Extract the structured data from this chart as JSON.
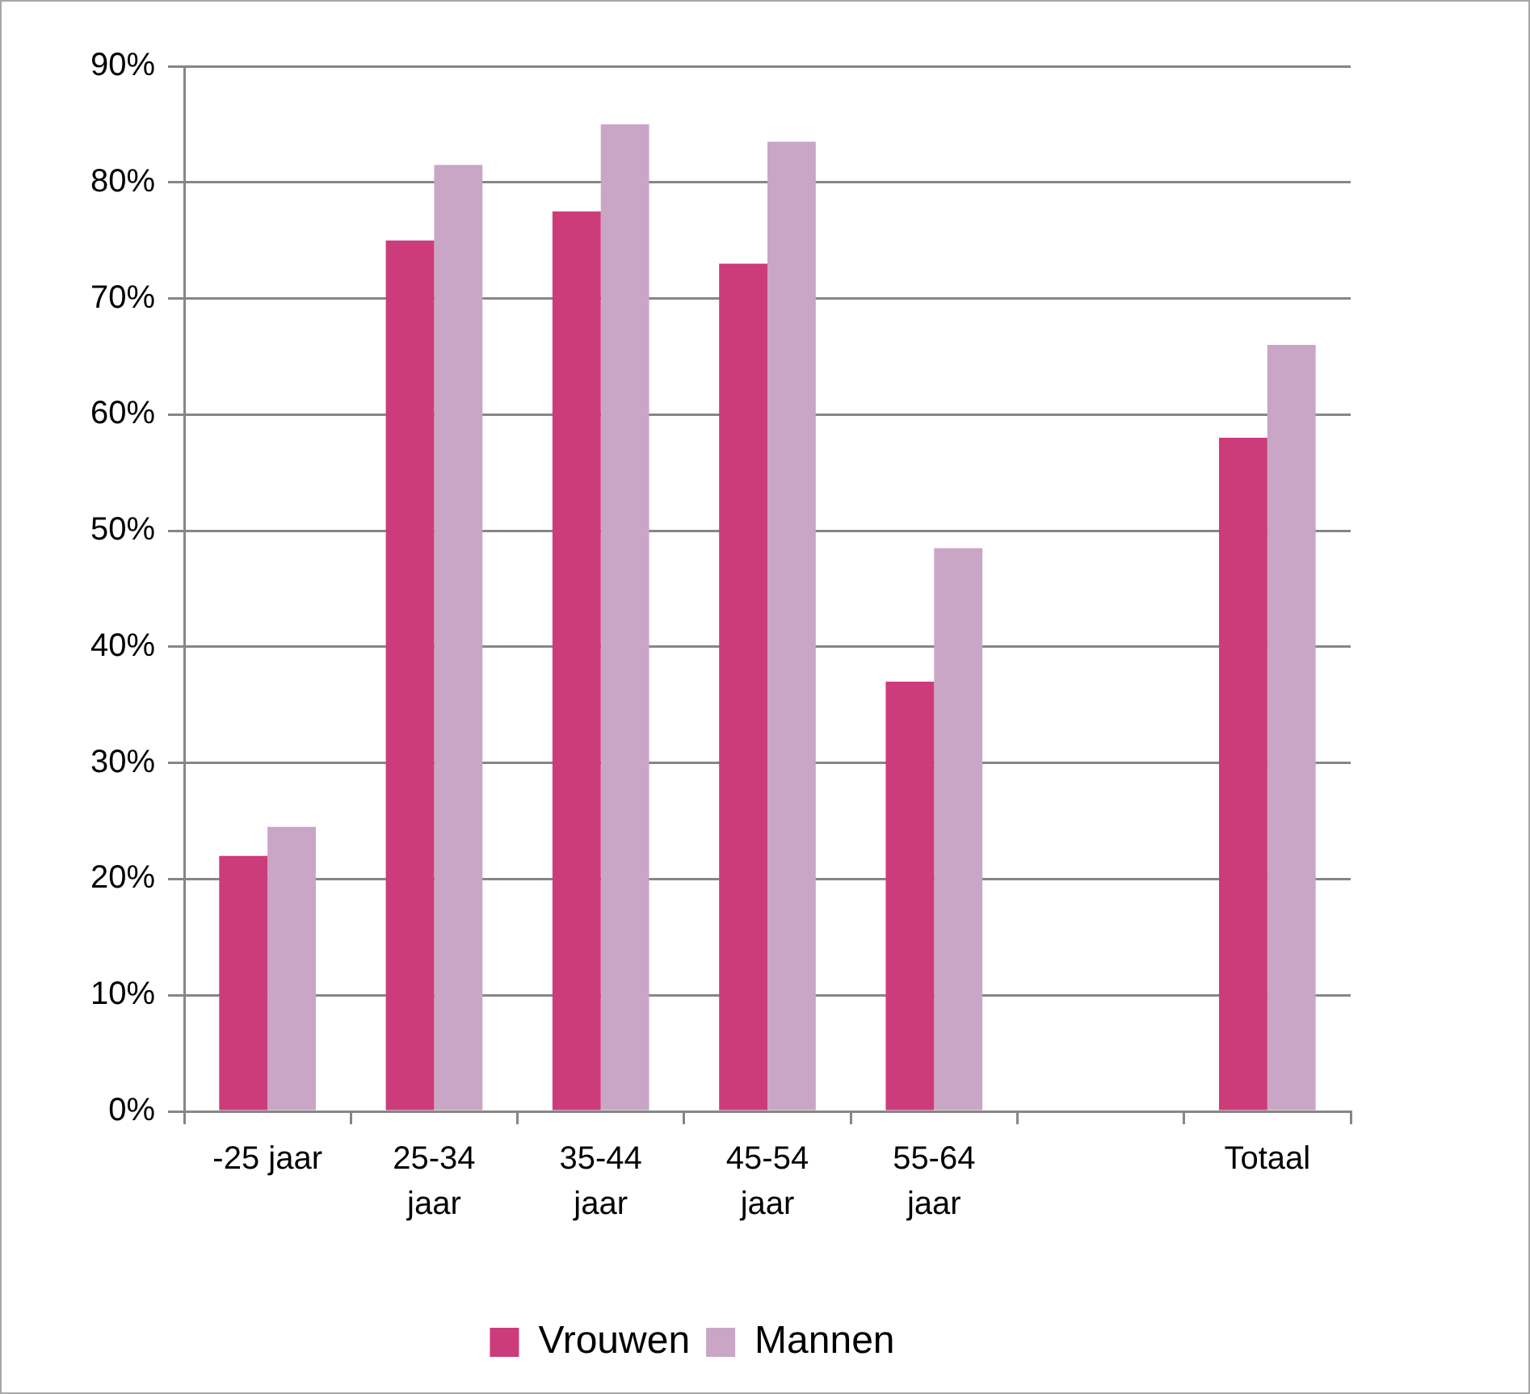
{
  "chart_data": {
    "type": "bar",
    "categories": [
      "-25 jaar",
      "25-34 jaar",
      "35-44 jaar",
      "45-54 jaar",
      "55-64 jaar",
      null,
      "Totaal"
    ],
    "series": [
      {
        "name": "Vrouwen",
        "color": "#cc3c7a",
        "values": [
          22,
          75,
          77.5,
          73,
          37,
          null,
          58
        ]
      },
      {
        "name": "Mannen",
        "color": "#c9a6c5",
        "values": [
          24.5,
          81.5,
          85,
          83.5,
          48.5,
          null,
          66
        ]
      }
    ],
    "ylim": [
      0,
      90
    ],
    "yticks": [
      {
        "value": 0,
        "label": "0%"
      },
      {
        "value": 10,
        "label": "10%"
      },
      {
        "value": 20,
        "label": "20%"
      },
      {
        "value": 30,
        "label": "30%"
      },
      {
        "value": 40,
        "label": "40%"
      },
      {
        "value": 50,
        "label": "50%"
      },
      {
        "value": 60,
        "label": "60%"
      },
      {
        "value": 70,
        "label": "70%"
      },
      {
        "value": 80,
        "label": "80%"
      },
      {
        "value": 90,
        "label": "90%"
      }
    ],
    "grid": "y",
    "legend": "bottom"
  }
}
